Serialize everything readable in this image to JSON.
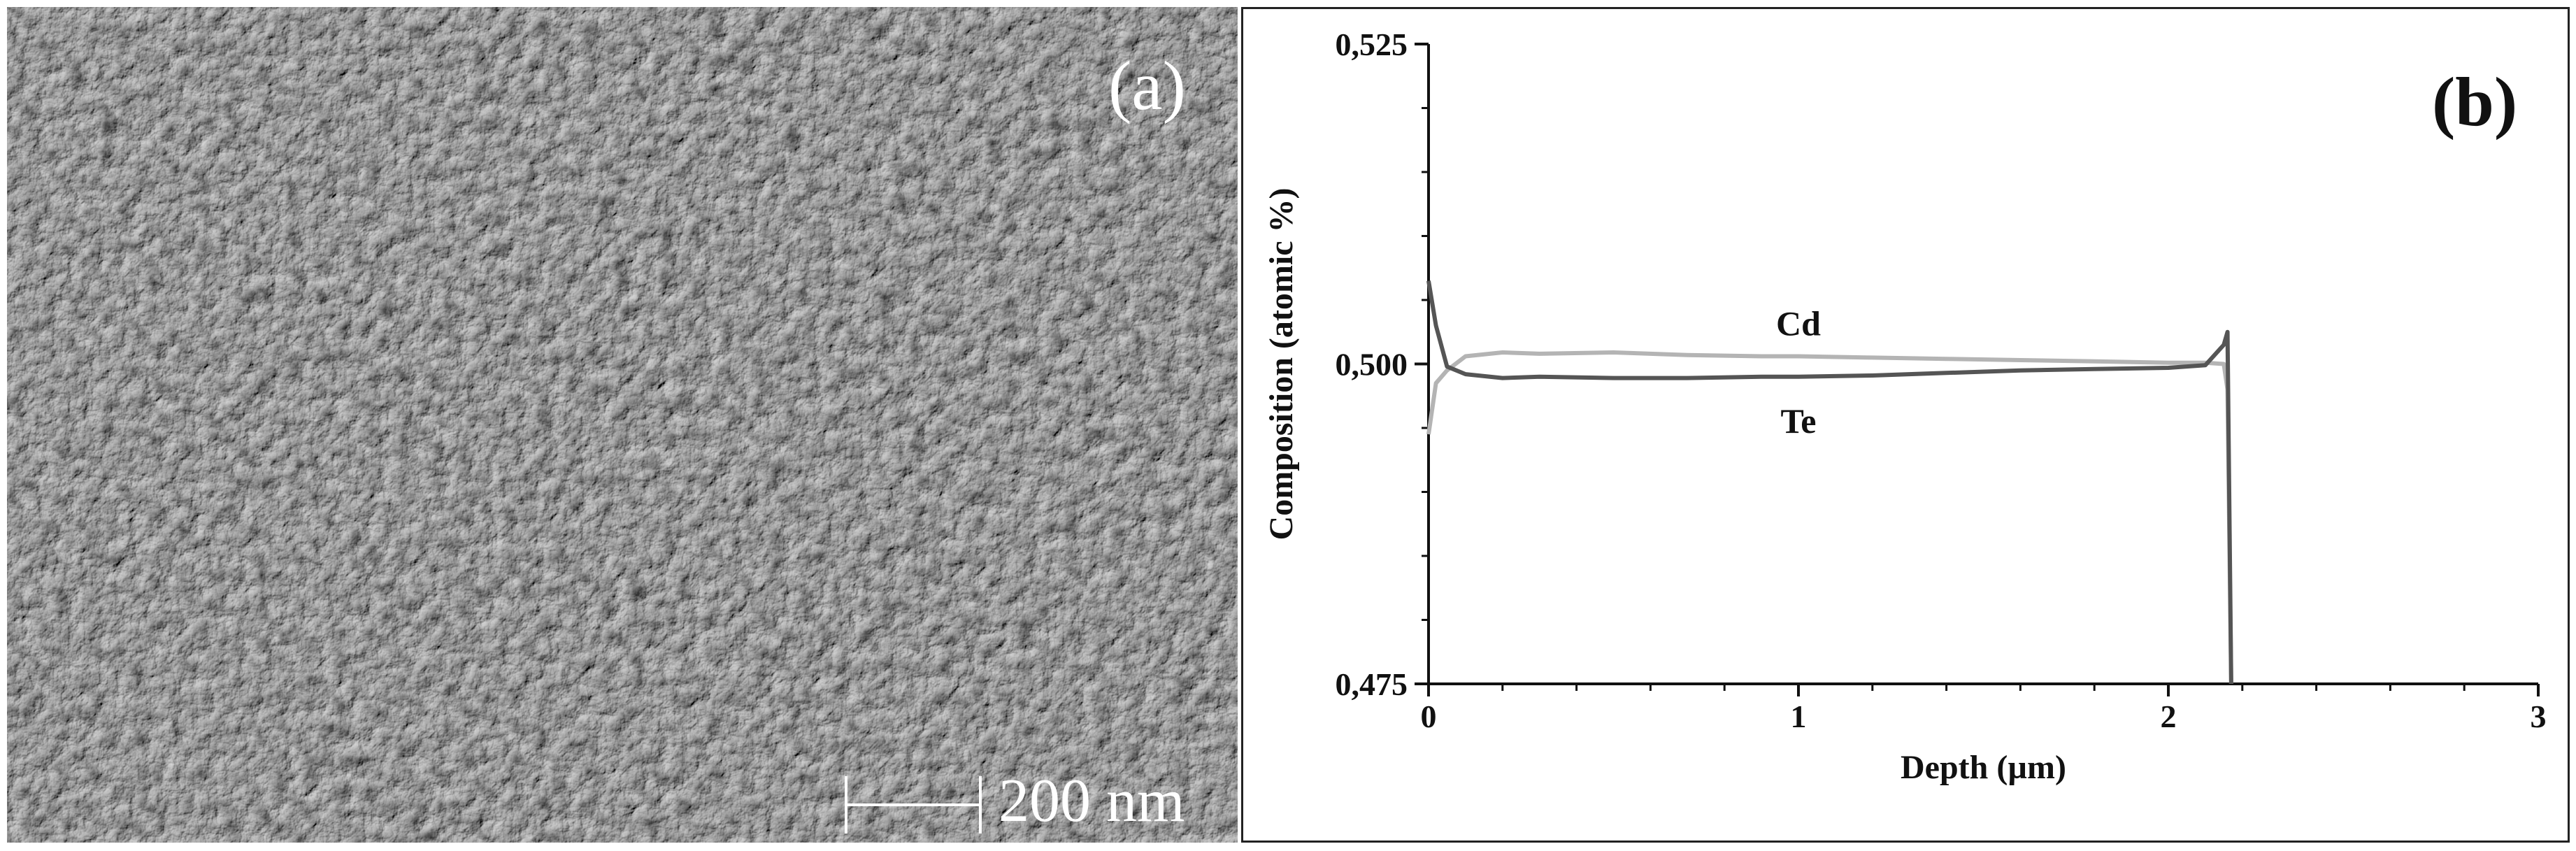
{
  "panel_a": {
    "label": "(a)",
    "scale_bar_text": "200 nm"
  },
  "panel_b": {
    "label": "(b)"
  },
  "chart_data": {
    "type": "line",
    "xlabel": "Depth  (µm)",
    "ylabel": "Composition (atomic %)",
    "xlim": [
      0,
      3
    ],
    "ylim": [
      0.475,
      0.525
    ],
    "x_ticks": [
      "0",
      "1",
      "2",
      "3"
    ],
    "y_ticks": [
      "0,475",
      "0,500",
      "0,525"
    ],
    "grid": false,
    "series": [
      {
        "name": "Cd",
        "color": "#b4b4b4",
        "x": [
          0,
          0.02,
          0.05,
          0.1,
          0.2,
          0.3,
          0.5,
          0.7,
          0.9,
          1.0,
          1.2,
          1.4,
          1.6,
          1.8,
          2.0,
          2.1,
          2.15,
          2.16,
          2.17
        ],
        "y": [
          0.4945,
          0.4985,
          0.4995,
          0.5006,
          0.5009,
          0.5008,
          0.5009,
          0.5007,
          0.5006,
          0.5006,
          0.5005,
          0.5004,
          0.5003,
          0.5002,
          0.5001,
          0.5001,
          0.5,
          0.498,
          0.475
        ]
      },
      {
        "name": "Te",
        "color": "#555555",
        "x": [
          0,
          0.02,
          0.05,
          0.1,
          0.2,
          0.3,
          0.5,
          0.7,
          0.9,
          1.0,
          1.2,
          1.4,
          1.6,
          1.8,
          2.0,
          2.1,
          2.15,
          2.16,
          2.17
        ],
        "y": [
          0.5065,
          0.503,
          0.4998,
          0.4992,
          0.4989,
          0.499,
          0.4989,
          0.4989,
          0.499,
          0.499,
          0.4991,
          0.4993,
          0.4995,
          0.4996,
          0.4997,
          0.4999,
          0.5015,
          0.5025,
          0.475
        ]
      }
    ]
  }
}
